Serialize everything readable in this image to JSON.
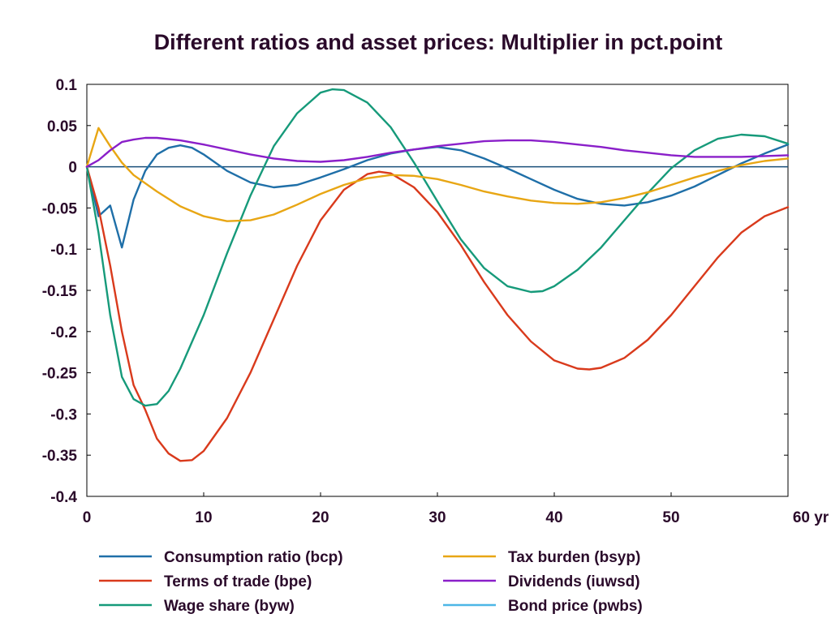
{
  "chart_data": {
    "type": "line",
    "title": "Different ratios and asset prices: Multiplier in pct.point",
    "xlabel": "",
    "ylabel": "",
    "xlim": [
      0,
      60
    ],
    "ylim": [
      -0.4,
      0.1
    ],
    "x_ticks": [
      0,
      10,
      20,
      30,
      40,
      50,
      60
    ],
    "x_tick_labels": [
      "0",
      "10",
      "20",
      "30",
      "40",
      "50",
      "60 yr"
    ],
    "y_ticks": [
      0.1,
      0.05,
      0,
      -0.05,
      -0.1,
      -0.15,
      -0.2,
      -0.25,
      -0.3,
      -0.35,
      -0.4
    ],
    "y_tick_labels": [
      "0.1",
      "0.05",
      "0",
      "-0.05",
      "-0.1",
      "-0.15",
      "-0.2",
      "-0.25",
      "-0.3",
      "-0.35",
      "-0.4"
    ],
    "grid": false,
    "legend_position": "bottom",
    "series": [
      {
        "name": "Consumption ratio (bcp)",
        "color": "#1f6fa8",
        "points": [
          [
            0,
            0
          ],
          [
            1,
            -0.06
          ],
          [
            2,
            -0.047
          ],
          [
            3,
            -0.098
          ],
          [
            4,
            -0.04
          ],
          [
            5,
            -0.005
          ],
          [
            6,
            0.015
          ],
          [
            7,
            0.023
          ],
          [
            8,
            0.026
          ],
          [
            9,
            0.023
          ],
          [
            10,
            0.015
          ],
          [
            12,
            -0.005
          ],
          [
            14,
            -0.019
          ],
          [
            16,
            -0.025
          ],
          [
            18,
            -0.022
          ],
          [
            20,
            -0.013
          ],
          [
            22,
            -0.003
          ],
          [
            24,
            0.008
          ],
          [
            26,
            0.016
          ],
          [
            28,
            0.021
          ],
          [
            30,
            0.024
          ],
          [
            32,
            0.02
          ],
          [
            34,
            0.01
          ],
          [
            36,
            -0.002
          ],
          [
            38,
            -0.015
          ],
          [
            40,
            -0.028
          ],
          [
            42,
            -0.039
          ],
          [
            44,
            -0.045
          ],
          [
            46,
            -0.047
          ],
          [
            48,
            -0.043
          ],
          [
            50,
            -0.035
          ],
          [
            52,
            -0.024
          ],
          [
            54,
            -0.01
          ],
          [
            56,
            0.004
          ],
          [
            58,
            0.016
          ],
          [
            60,
            0.027
          ]
        ]
      },
      {
        "name": "Terms of trade (bpe)",
        "color": "#d93a1c",
        "points": [
          [
            0,
            0
          ],
          [
            1,
            -0.05
          ],
          [
            2,
            -0.12
          ],
          [
            3,
            -0.2
          ],
          [
            4,
            -0.265
          ],
          [
            5,
            -0.295
          ],
          [
            6,
            -0.33
          ],
          [
            7,
            -0.348
          ],
          [
            8,
            -0.357
          ],
          [
            9,
            -0.356
          ],
          [
            10,
            -0.345
          ],
          [
            12,
            -0.305
          ],
          [
            14,
            -0.25
          ],
          [
            16,
            -0.185
          ],
          [
            18,
            -0.12
          ],
          [
            20,
            -0.065
          ],
          [
            22,
            -0.028
          ],
          [
            24,
            -0.009
          ],
          [
            25,
            -0.006
          ],
          [
            26,
            -0.008
          ],
          [
            28,
            -0.025
          ],
          [
            30,
            -0.055
          ],
          [
            32,
            -0.095
          ],
          [
            34,
            -0.14
          ],
          [
            36,
            -0.18
          ],
          [
            38,
            -0.212
          ],
          [
            40,
            -0.235
          ],
          [
            42,
            -0.245
          ],
          [
            43,
            -0.246
          ],
          [
            44,
            -0.244
          ],
          [
            46,
            -0.232
          ],
          [
            48,
            -0.21
          ],
          [
            50,
            -0.18
          ],
          [
            52,
            -0.145
          ],
          [
            54,
            -0.11
          ],
          [
            56,
            -0.08
          ],
          [
            58,
            -0.06
          ],
          [
            60,
            -0.049
          ]
        ]
      },
      {
        "name": "Wage share (byw)",
        "color": "#169a7a",
        "points": [
          [
            0,
            0
          ],
          [
            1,
            -0.08
          ],
          [
            2,
            -0.18
          ],
          [
            3,
            -0.255
          ],
          [
            4,
            -0.282
          ],
          [
            5,
            -0.29
          ],
          [
            6,
            -0.288
          ],
          [
            7,
            -0.272
          ],
          [
            8,
            -0.245
          ],
          [
            10,
            -0.18
          ],
          [
            12,
            -0.105
          ],
          [
            14,
            -0.035
          ],
          [
            16,
            0.025
          ],
          [
            18,
            0.065
          ],
          [
            20,
            0.09
          ],
          [
            21,
            0.094
          ],
          [
            22,
            0.093
          ],
          [
            24,
            0.078
          ],
          [
            26,
            0.048
          ],
          [
            28,
            0.005
          ],
          [
            30,
            -0.042
          ],
          [
            32,
            -0.088
          ],
          [
            34,
            -0.123
          ],
          [
            36,
            -0.145
          ],
          [
            38,
            -0.152
          ],
          [
            39,
            -0.151
          ],
          [
            40,
            -0.145
          ],
          [
            42,
            -0.125
          ],
          [
            44,
            -0.098
          ],
          [
            46,
            -0.065
          ],
          [
            48,
            -0.032
          ],
          [
            50,
            -0.002
          ],
          [
            52,
            0.02
          ],
          [
            54,
            0.034
          ],
          [
            56,
            0.039
          ],
          [
            58,
            0.037
          ],
          [
            60,
            0.028
          ]
        ]
      },
      {
        "name": "Tax burden (bsyp)",
        "color": "#e8a614",
        "points": [
          [
            0,
            0
          ],
          [
            1,
            0.047
          ],
          [
            2,
            0.025
          ],
          [
            3,
            0.005
          ],
          [
            4,
            -0.01
          ],
          [
            6,
            -0.03
          ],
          [
            8,
            -0.048
          ],
          [
            10,
            -0.06
          ],
          [
            12,
            -0.066
          ],
          [
            14,
            -0.065
          ],
          [
            16,
            -0.058
          ],
          [
            18,
            -0.046
          ],
          [
            20,
            -0.033
          ],
          [
            22,
            -0.022
          ],
          [
            24,
            -0.014
          ],
          [
            26,
            -0.01
          ],
          [
            28,
            -0.011
          ],
          [
            30,
            -0.015
          ],
          [
            32,
            -0.022
          ],
          [
            34,
            -0.03
          ],
          [
            36,
            -0.036
          ],
          [
            38,
            -0.041
          ],
          [
            40,
            -0.044
          ],
          [
            42,
            -0.045
          ],
          [
            44,
            -0.043
          ],
          [
            46,
            -0.038
          ],
          [
            48,
            -0.031
          ],
          [
            50,
            -0.022
          ],
          [
            52,
            -0.013
          ],
          [
            54,
            -0.005
          ],
          [
            56,
            0.002
          ],
          [
            58,
            0.007
          ],
          [
            60,
            0.01
          ]
        ]
      },
      {
        "name": "Dividends (iuwsd)",
        "color": "#8a1fc9",
        "points": [
          [
            0,
            0
          ],
          [
            1,
            0.008
          ],
          [
            2,
            0.02
          ],
          [
            3,
            0.03
          ],
          [
            4,
            0.033
          ],
          [
            5,
            0.035
          ],
          [
            6,
            0.035
          ],
          [
            8,
            0.032
          ],
          [
            10,
            0.027
          ],
          [
            12,
            0.021
          ],
          [
            14,
            0.015
          ],
          [
            16,
            0.01
          ],
          [
            18,
            0.007
          ],
          [
            20,
            0.006
          ],
          [
            22,
            0.008
          ],
          [
            24,
            0.012
          ],
          [
            26,
            0.017
          ],
          [
            28,
            0.021
          ],
          [
            30,
            0.025
          ],
          [
            32,
            0.028
          ],
          [
            34,
            0.031
          ],
          [
            36,
            0.032
          ],
          [
            38,
            0.032
          ],
          [
            40,
            0.03
          ],
          [
            42,
            0.027
          ],
          [
            44,
            0.024
          ],
          [
            46,
            0.02
          ],
          [
            48,
            0.017
          ],
          [
            50,
            0.014
          ],
          [
            52,
            0.012
          ],
          [
            54,
            0.012
          ],
          [
            56,
            0.012
          ],
          [
            58,
            0.013
          ],
          [
            60,
            0.014
          ]
        ]
      },
      {
        "name": "Bond price (pwbs)",
        "color": "#4cb6e6",
        "points": [
          [
            0,
            0
          ],
          [
            60,
            0
          ]
        ]
      }
    ],
    "zero_line_color": "#1a4f7a"
  }
}
